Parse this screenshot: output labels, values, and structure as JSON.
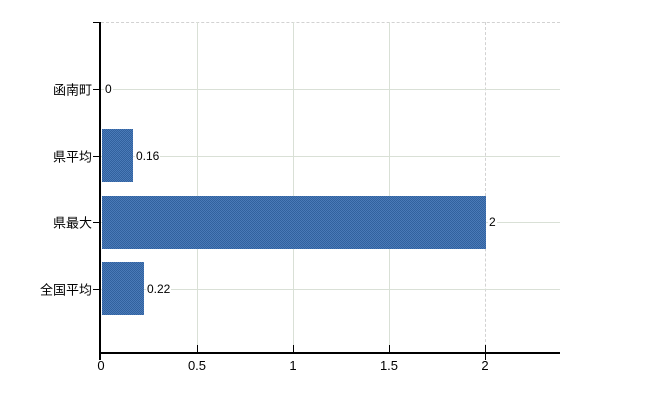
{
  "chart_data": {
    "type": "bar",
    "orientation": "horizontal",
    "title": "",
    "categories": [
      "函南町",
      "県平均",
      "県最大",
      "全国平均"
    ],
    "values": [
      0,
      0.16,
      2,
      0.22
    ],
    "value_labels": [
      "0",
      "0.16",
      "2",
      "0.22"
    ],
    "x_ticks": [
      {
        "value": 0,
        "label": "0"
      },
      {
        "value": 0.5,
        "label": "0.5"
      },
      {
        "value": 1,
        "label": "1"
      },
      {
        "value": 1.5,
        "label": "1.5"
      },
      {
        "value": 2,
        "label": "2"
      }
    ],
    "xlim": [
      0,
      2.39
    ],
    "grid": true,
    "max_value_dashed_line": 2,
    "legend": null,
    "colors": {
      "bar_primary": "#31619e",
      "bar_secondary": "#4a7ab8",
      "gridline": "#d9e0d6",
      "dashed_line": "#d2d2d2",
      "axis": "#000000",
      "text": "#000000",
      "background": "#ffffff"
    }
  }
}
